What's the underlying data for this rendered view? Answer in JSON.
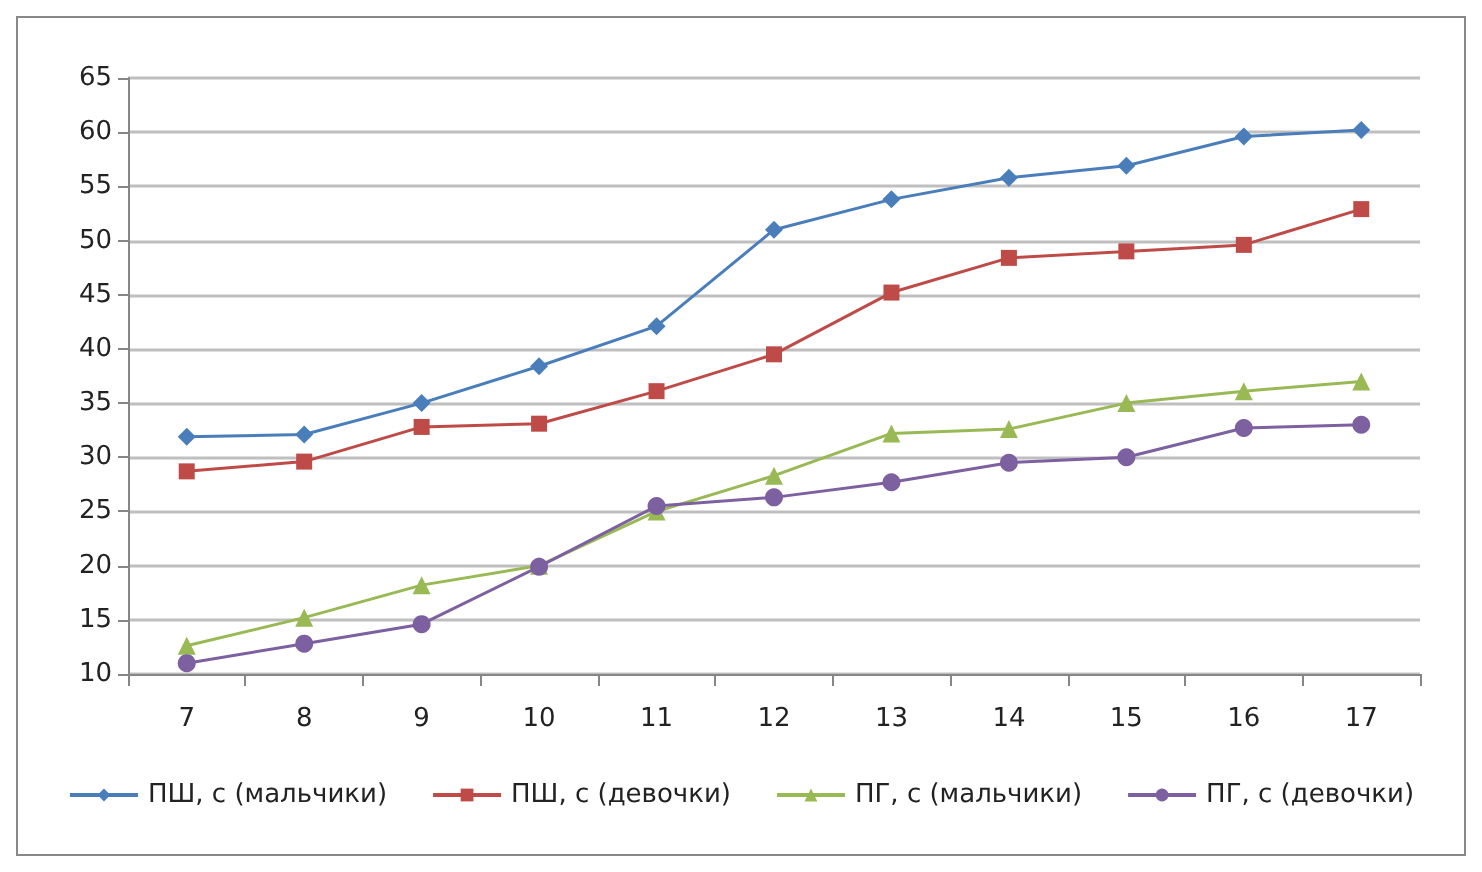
{
  "chart_data": {
    "type": "line",
    "categories": [
      "7",
      "8",
      "9",
      "10",
      "11",
      "12",
      "13",
      "14",
      "15",
      "16",
      "17"
    ],
    "ylim": [
      10,
      65
    ],
    "yticks": [
      10,
      15,
      20,
      25,
      30,
      35,
      40,
      45,
      50,
      55,
      60,
      65
    ],
    "grid": "y",
    "legend": "bottom",
    "series": [
      {
        "name": "ПШ, с (мальчики)",
        "color": "#4a7ebb",
        "marker": "diamond",
        "values": [
          31.9,
          32.1,
          35,
          38.4,
          42.1,
          51,
          53.8,
          55.8,
          56.9,
          59.6,
          60.2
        ]
      },
      {
        "name": "ПШ, с (девочки)",
        "color": "#be4b48",
        "marker": "square",
        "values": [
          28.7,
          29.6,
          32.8,
          33.1,
          36.1,
          39.5,
          45.2,
          48.4,
          49,
          49.6,
          52.9
        ]
      },
      {
        "name": "ПГ, с (мальчики)",
        "color": "#98b954",
        "marker": "triangle",
        "values": [
          12.6,
          15.2,
          18.2,
          20,
          25,
          28.3,
          32.2,
          32.6,
          35,
          36.1,
          37
        ]
      },
      {
        "name": "ПГ, с (девочки)",
        "color": "#7d60a0",
        "marker": "circle",
        "values": [
          11,
          12.8,
          14.6,
          19.9,
          25.5,
          26.3,
          27.7,
          29.5,
          30,
          32.7,
          33
        ]
      }
    ]
  }
}
